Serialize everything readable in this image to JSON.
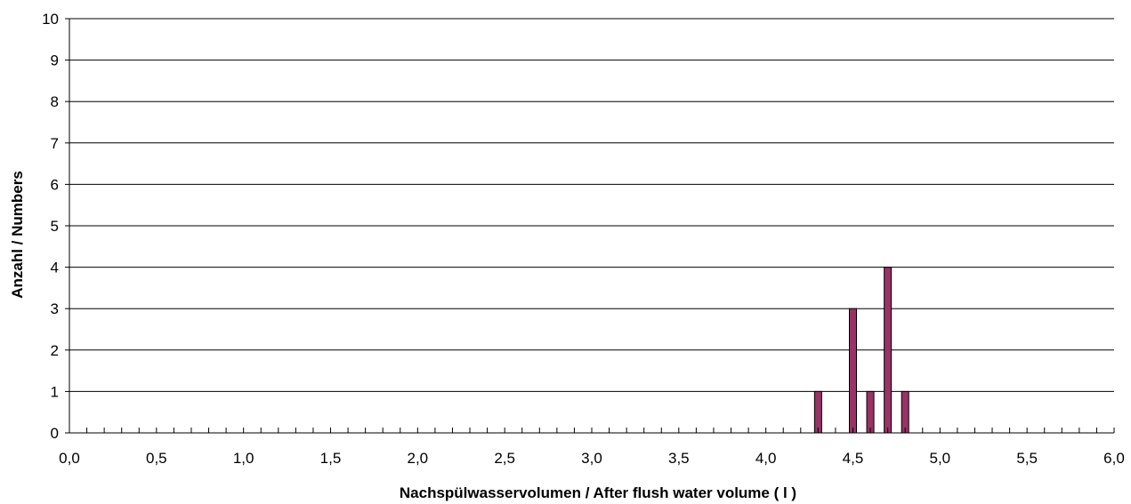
{
  "chart_data": {
    "type": "bar",
    "title": "",
    "xlabel": "Nachspülwasservolumen  /  After flush water volume ( l )",
    "ylabel": "Anzahl  / Numbers",
    "xlim": [
      0,
      6
    ],
    "ylim": [
      0,
      10
    ],
    "x_tick_labels": [
      "0,0",
      "0,5",
      "1,0",
      "1,5",
      "2,0",
      "2,5",
      "3,0",
      "3,5",
      "4,0",
      "4,5",
      "5,0",
      "5,5",
      "6,0"
    ],
    "y_tick_labels": [
      "0",
      "1",
      "2",
      "3",
      "4",
      "5",
      "6",
      "7",
      "8",
      "9",
      "10"
    ],
    "grid": "horizontal",
    "legend": "none",
    "bar_color": "#993366",
    "series": [
      {
        "x": [
          4.3,
          4.5,
          4.6,
          4.7,
          4.8
        ],
        "values": [
          1,
          3,
          1,
          4,
          1
        ]
      }
    ]
  }
}
